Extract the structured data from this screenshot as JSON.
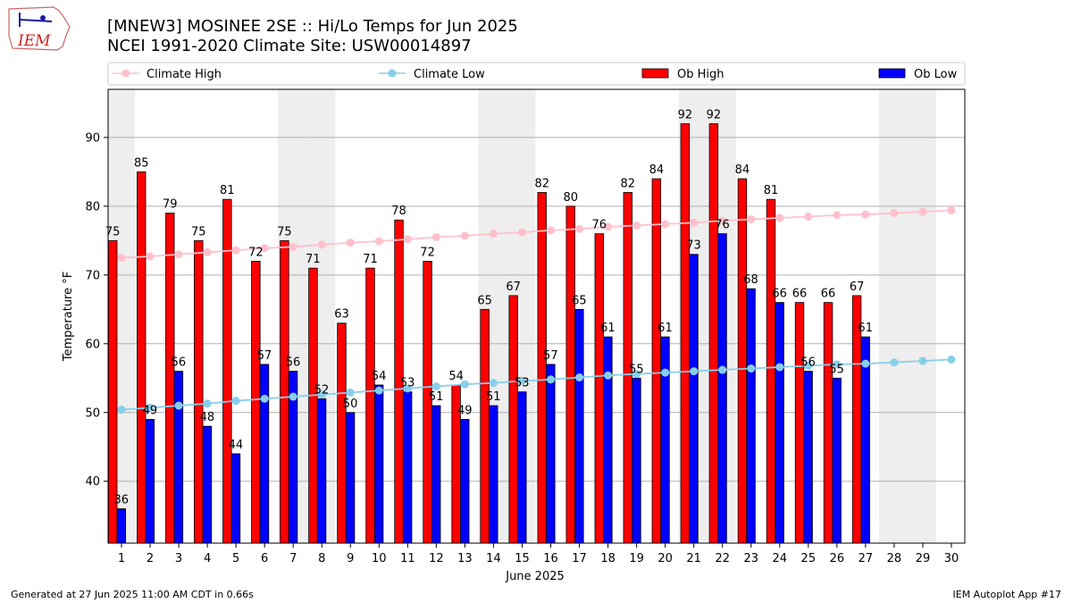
{
  "logo": {
    "text": "IEM"
  },
  "header": {
    "title_line1": "[MNEW3] MOSINEE 2SE :: Hi/Lo Temps for Jun 2025",
    "title_line2": "NCEI 1991-2020 Climate Site: USW00014897"
  },
  "footer": {
    "generated": "Generated at 27 Jun 2025 11:00 AM CDT in 0.66s",
    "app": "IEM Autoplot App #17"
  },
  "colors": {
    "ob_high": "#ff0000",
    "ob_low": "#0000ff",
    "climate_high": "#ffc0cb",
    "climate_low": "#87ceeb",
    "weekend_shade": "#eeeeee"
  },
  "chart_data": {
    "type": "bar",
    "xlabel": "June 2025",
    "ylabel": "Temperature °F",
    "ylim": [
      31,
      97
    ],
    "yticks": [
      40,
      50,
      60,
      70,
      80,
      90
    ],
    "grid": "horizontal",
    "legend_position": "top",
    "categories": [
      "1",
      "2",
      "3",
      "4",
      "5",
      "6",
      "7",
      "8",
      "9",
      "10",
      "11",
      "12",
      "13",
      "14",
      "15",
      "16",
      "17",
      "18",
      "19",
      "20",
      "21",
      "22",
      "23",
      "24",
      "25",
      "26",
      "27",
      "28",
      "29",
      "30"
    ],
    "shaded_days": [
      1,
      7,
      8,
      14,
      15,
      21,
      22,
      28,
      29
    ],
    "series": [
      {
        "name": "Climate High",
        "kind": "line",
        "values": [
          72.5,
          72.7,
          73.0,
          73.3,
          73.6,
          73.9,
          74.1,
          74.4,
          74.7,
          74.9,
          75.2,
          75.5,
          75.7,
          76.0,
          76.2,
          76.5,
          76.7,
          77.0,
          77.2,
          77.4,
          77.6,
          77.9,
          78.1,
          78.3,
          78.5,
          78.7,
          78.8,
          79.0,
          79.2,
          79.4
        ]
      },
      {
        "name": "Climate Low",
        "kind": "line",
        "values": [
          50.4,
          50.7,
          51.0,
          51.3,
          51.7,
          52.0,
          52.3,
          52.6,
          52.9,
          53.2,
          53.5,
          53.8,
          54.1,
          54.3,
          54.6,
          54.8,
          55.1,
          55.4,
          55.6,
          55.8,
          56.0,
          56.2,
          56.4,
          56.6,
          56.8,
          57.0,
          57.1,
          57.3,
          57.5,
          57.7
        ]
      },
      {
        "name": "Ob High",
        "kind": "bar",
        "values": [
          75,
          85,
          79,
          75,
          81,
          72,
          75,
          71,
          63,
          71,
          78,
          72,
          54,
          65,
          67,
          82,
          80,
          76,
          82,
          84,
          92,
          92,
          84,
          81,
          66,
          66,
          67,
          null,
          null,
          null
        ]
      },
      {
        "name": "Ob Low",
        "kind": "bar",
        "values": [
          36,
          49,
          56,
          48,
          44,
          57,
          56,
          52,
          50,
          54,
          53,
          51,
          49,
          51,
          53,
          57,
          65,
          61,
          55,
          61,
          73,
          76,
          68,
          66,
          56,
          55,
          61,
          null,
          null,
          null
        ]
      }
    ]
  }
}
